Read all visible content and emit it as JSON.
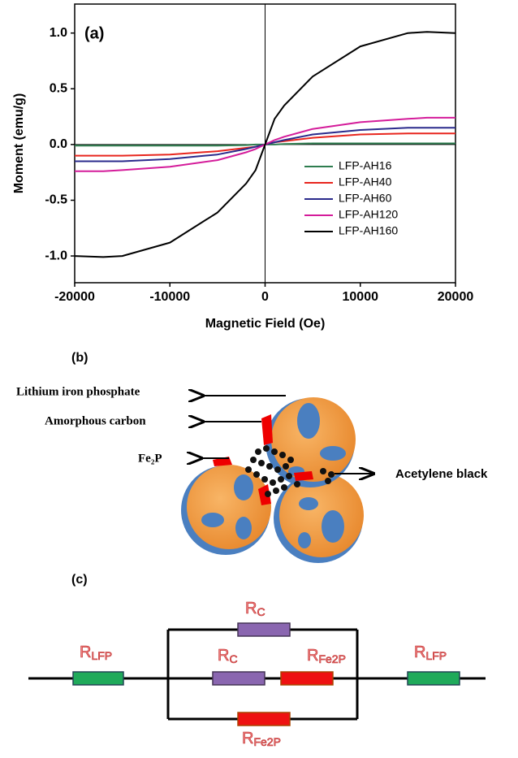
{
  "chart_data": {
    "type": "line",
    "panel_label": "(a)",
    "x_label": "Magnetic Field (Oe)",
    "y_label": "Moment (emu/g)",
    "x": [
      -20000,
      -17000,
      -15000,
      -10000,
      -5000,
      -2000,
      -1000,
      0,
      1000,
      2000,
      5000,
      10000,
      15000,
      17000,
      20000
    ],
    "series": [
      {
        "name": "LFP-AH16",
        "color": "#2e7d4f",
        "values": [
          -0.01,
          -0.01,
          -0.01,
          -0.01,
          -0.01,
          -0.005,
          0,
          0,
          0,
          0.005,
          0.01,
          0.01,
          0.01,
          0.01,
          0.01
        ]
      },
      {
        "name": "LFP-AH40",
        "color": "#e8261e",
        "values": [
          -0.1,
          -0.1,
          -0.1,
          -0.09,
          -0.06,
          -0.03,
          -0.02,
          0,
          0.02,
          0.03,
          0.06,
          0.09,
          0.1,
          0.1,
          0.1
        ]
      },
      {
        "name": "LFP-AH60",
        "color": "#2a2a8c",
        "values": [
          -0.15,
          -0.15,
          -0.15,
          -0.13,
          -0.09,
          -0.04,
          -0.02,
          0,
          0.02,
          0.04,
          0.09,
          0.13,
          0.15,
          0.15,
          0.15
        ]
      },
      {
        "name": "LFP-AH120",
        "color": "#d41c9a",
        "values": [
          -0.24,
          -0.24,
          -0.23,
          -0.2,
          -0.14,
          -0.07,
          -0.04,
          0,
          0.04,
          0.07,
          0.14,
          0.2,
          0.23,
          0.24,
          0.24
        ]
      },
      {
        "name": "LFP-AH160",
        "color": "#000000",
        "values": [
          -1.0,
          -1.01,
          -1.0,
          -0.88,
          -0.61,
          -0.35,
          -0.23,
          0,
          0.23,
          0.35,
          0.61,
          0.88,
          1.0,
          1.01,
          1.0
        ]
      }
    ],
    "xlim": [
      -20000,
      20000
    ],
    "ylim": [
      -1.24,
      1.26
    ],
    "xticks": [
      -20000,
      -10000,
      0,
      10000,
      20000
    ],
    "yticks": [
      {
        "value": -1,
        "label": "-1.0"
      },
      -0.5,
      {
        "value": 0,
        "label": "0.0"
      },
      0.5,
      {
        "value": 1,
        "label": "1.0"
      }
    ],
    "legend": "center right",
    "grid": false
  },
  "diagram": {
    "panel_label": "(b)",
    "labels": [
      "Lithium iron phosphate",
      "Amorphous carbon",
      "Fe₂P",
      "Acetylene black"
    ]
  },
  "circuit": {
    "panel_label": "(c)",
    "resistors": [
      {
        "symbol": "R",
        "sub": "LFP"
      },
      {
        "symbol": "R",
        "sub": "C"
      },
      {
        "symbol": "R",
        "sub": "C"
      },
      {
        "symbol": "R",
        "sub": "Fe2P"
      },
      {
        "symbol": "R",
        "sub": "LFP"
      },
      {
        "symbol": "R",
        "sub": "Fe2P"
      }
    ]
  }
}
